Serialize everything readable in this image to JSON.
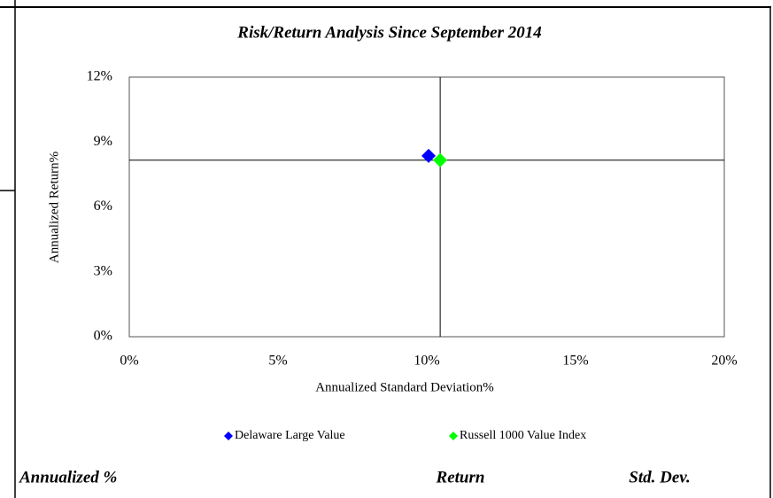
{
  "chart_data": {
    "type": "scatter",
    "title": "Risk/Return Analysis Since September 2014",
    "x_label": "Annualized Standard Deviation%",
    "y_label": "Annualized Return%",
    "series": [
      {
        "name": "Delaware Large Value",
        "color": "#0000ff",
        "x": [
          10.06
        ],
        "y": [
          8.36
        ]
      },
      {
        "name": "Russell 1000 Value Index",
        "color": "#00ff00",
        "x": [
          10.45
        ],
        "y": [
          8.16
        ]
      }
    ],
    "xlim": [
      0,
      20
    ],
    "xticks": [
      {
        "value": 0,
        "label": "0%"
      },
      {
        "value": 5,
        "label": "5%"
      },
      {
        "value": 10,
        "label": "10%"
      },
      {
        "value": 15,
        "label": "15%"
      },
      {
        "value": 20,
        "label": "20%"
      }
    ],
    "ylim": [
      0,
      12
    ],
    "yticks": [
      {
        "value": 0,
        "label": "0%"
      },
      {
        "value": 3,
        "label": "3%"
      },
      {
        "value": 6,
        "label": "6%"
      },
      {
        "value": 9,
        "label": "9%"
      },
      {
        "value": 12,
        "label": "12%"
      }
    ],
    "legend": "bottom"
  },
  "table_header": [
    "Annualized %",
    "Return",
    "Std. Dev."
  ]
}
